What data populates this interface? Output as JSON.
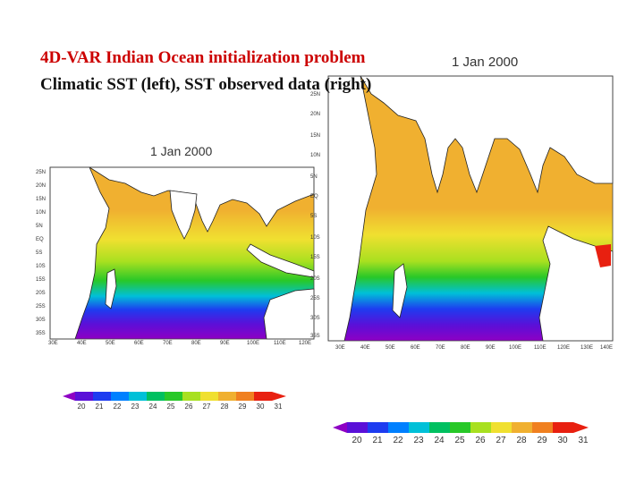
{
  "title": "4D-VAR Indian Ocean initialization problem",
  "subtitle": "Climatic SST  (left), SST observed data  (right)",
  "left_map": {
    "date": "1 Jan 2000",
    "lat_labels": [
      "25N",
      "20N",
      "15N",
      "10N",
      "5N",
      "EQ",
      "5S",
      "10S",
      "15S",
      "20S",
      "25S",
      "30S",
      "35S"
    ],
    "lon_labels": [
      "30E",
      "40E",
      "50E",
      "60E",
      "70E",
      "80E",
      "90E",
      "100E",
      "110E",
      "120E"
    ]
  },
  "right_map": {
    "date": "1 Jan 2000",
    "lat_labels": [
      "25N",
      "20N",
      "15N",
      "10N",
      "5N",
      "EQ",
      "5S",
      "10S",
      "15S",
      "20S",
      "25S",
      "30S",
      "35S"
    ],
    "lon_labels": [
      "30E",
      "40E",
      "50E",
      "60E",
      "70E",
      "80E",
      "90E",
      "100E",
      "110E",
      "120E",
      "130E",
      "140E"
    ]
  },
  "colorbar": {
    "ticks": [
      "20",
      "21",
      "22",
      "23",
      "24",
      "25",
      "26",
      "27",
      "28",
      "29",
      "30",
      "31"
    ],
    "colors": [
      "#8e00c4",
      "#5a10d8",
      "#1e3cf0",
      "#0080ff",
      "#00c0d8",
      "#00c060",
      "#28c828",
      "#a8e020",
      "#f0e030",
      "#f0b030",
      "#f08020",
      "#e82010"
    ]
  }
}
